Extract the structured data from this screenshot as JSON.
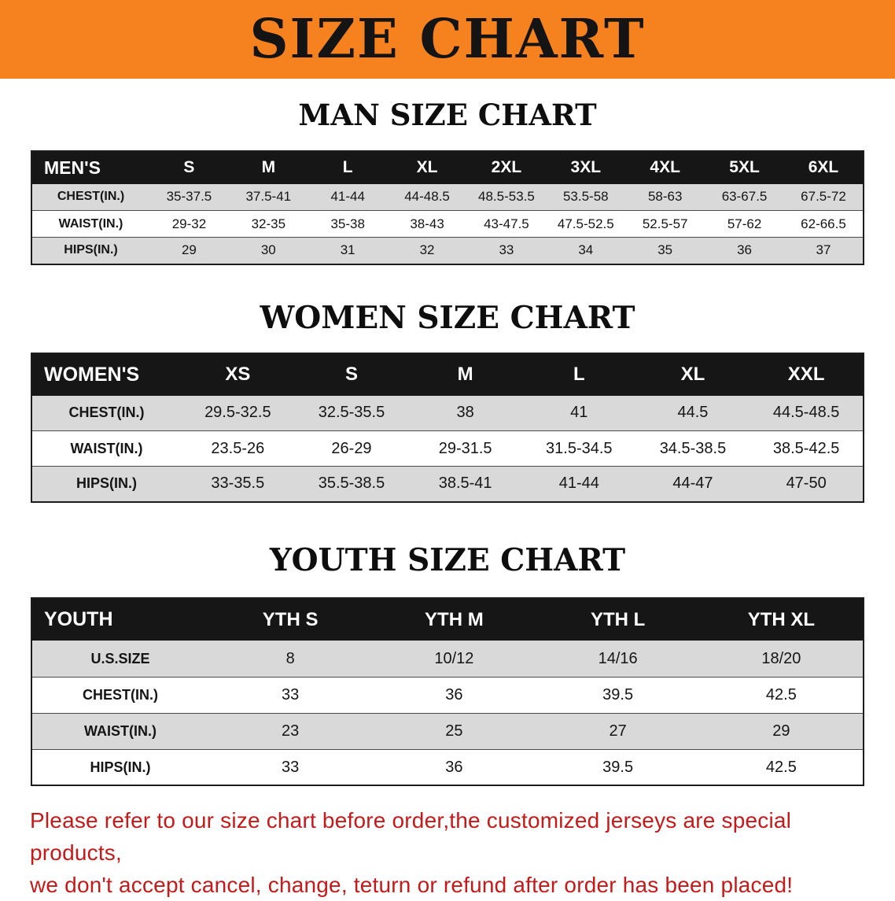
{
  "banner": {
    "title": "SIZE CHART"
  },
  "colors": {
    "banner_bg": "#F5821F",
    "table_header_bg": "#161616",
    "row_stripe": "#D9D9D9",
    "notice_text": "#C41A1A"
  },
  "chart_data": [
    {
      "type": "table",
      "title": "MAN SIZE CHART",
      "header": [
        "MEN'S",
        "S",
        "M",
        "L",
        "XL",
        "2XL",
        "3XL",
        "4XL",
        "5XL",
        "6XL"
      ],
      "rows": [
        [
          "CHEST(IN.)",
          "35-37.5",
          "37.5-41",
          "41-44",
          "44-48.5",
          "48.5-53.5",
          "53.5-58",
          "58-63",
          "63-67.5",
          "67.5-72"
        ],
        [
          "WAIST(IN.)",
          "29-32",
          "32-35",
          "35-38",
          "38-43",
          "43-47.5",
          "47.5-52.5",
          "52.5-57",
          "57-62",
          "62-66.5"
        ],
        [
          "HIPS(IN.)",
          "29",
          "30",
          "31",
          "32",
          "33",
          "34",
          "35",
          "36",
          "37"
        ]
      ]
    },
    {
      "type": "table",
      "title": "WOMEN SIZE CHART",
      "header": [
        "WOMEN'S",
        "XS",
        "S",
        "M",
        "L",
        "XL",
        "XXL"
      ],
      "rows": [
        [
          "CHEST(IN.)",
          "29.5-32.5",
          "32.5-35.5",
          "38",
          "41",
          "44.5",
          "44.5-48.5"
        ],
        [
          "WAIST(IN.)",
          "23.5-26",
          "26-29",
          "29-31.5",
          "31.5-34.5",
          "34.5-38.5",
          "38.5-42.5"
        ],
        [
          "HIPS(IN.)",
          "33-35.5",
          "35.5-38.5",
          "38.5-41",
          "41-44",
          "44-47",
          "47-50"
        ]
      ]
    },
    {
      "type": "table",
      "title": "YOUTH SIZE CHART",
      "header": [
        "YOUTH",
        "YTH S",
        "YTH M",
        "YTH L",
        "YTH XL"
      ],
      "rows": [
        [
          "U.S.SIZE",
          "8",
          "10/12",
          "14/16",
          "18/20"
        ],
        [
          "CHEST(IN.)",
          "33",
          "36",
          "39.5",
          "42.5"
        ],
        [
          "WAIST(IN.)",
          "23",
          "25",
          "27",
          "29"
        ],
        [
          "HIPS(IN.)",
          "33",
          "36",
          "39.5",
          "42.5"
        ]
      ]
    }
  ],
  "footer": {
    "line1": "Please refer to our size chart before order,the customized jerseys are special products,",
    "line2": "we don't accept cancel, change, teturn or refund after order has been placed!"
  }
}
